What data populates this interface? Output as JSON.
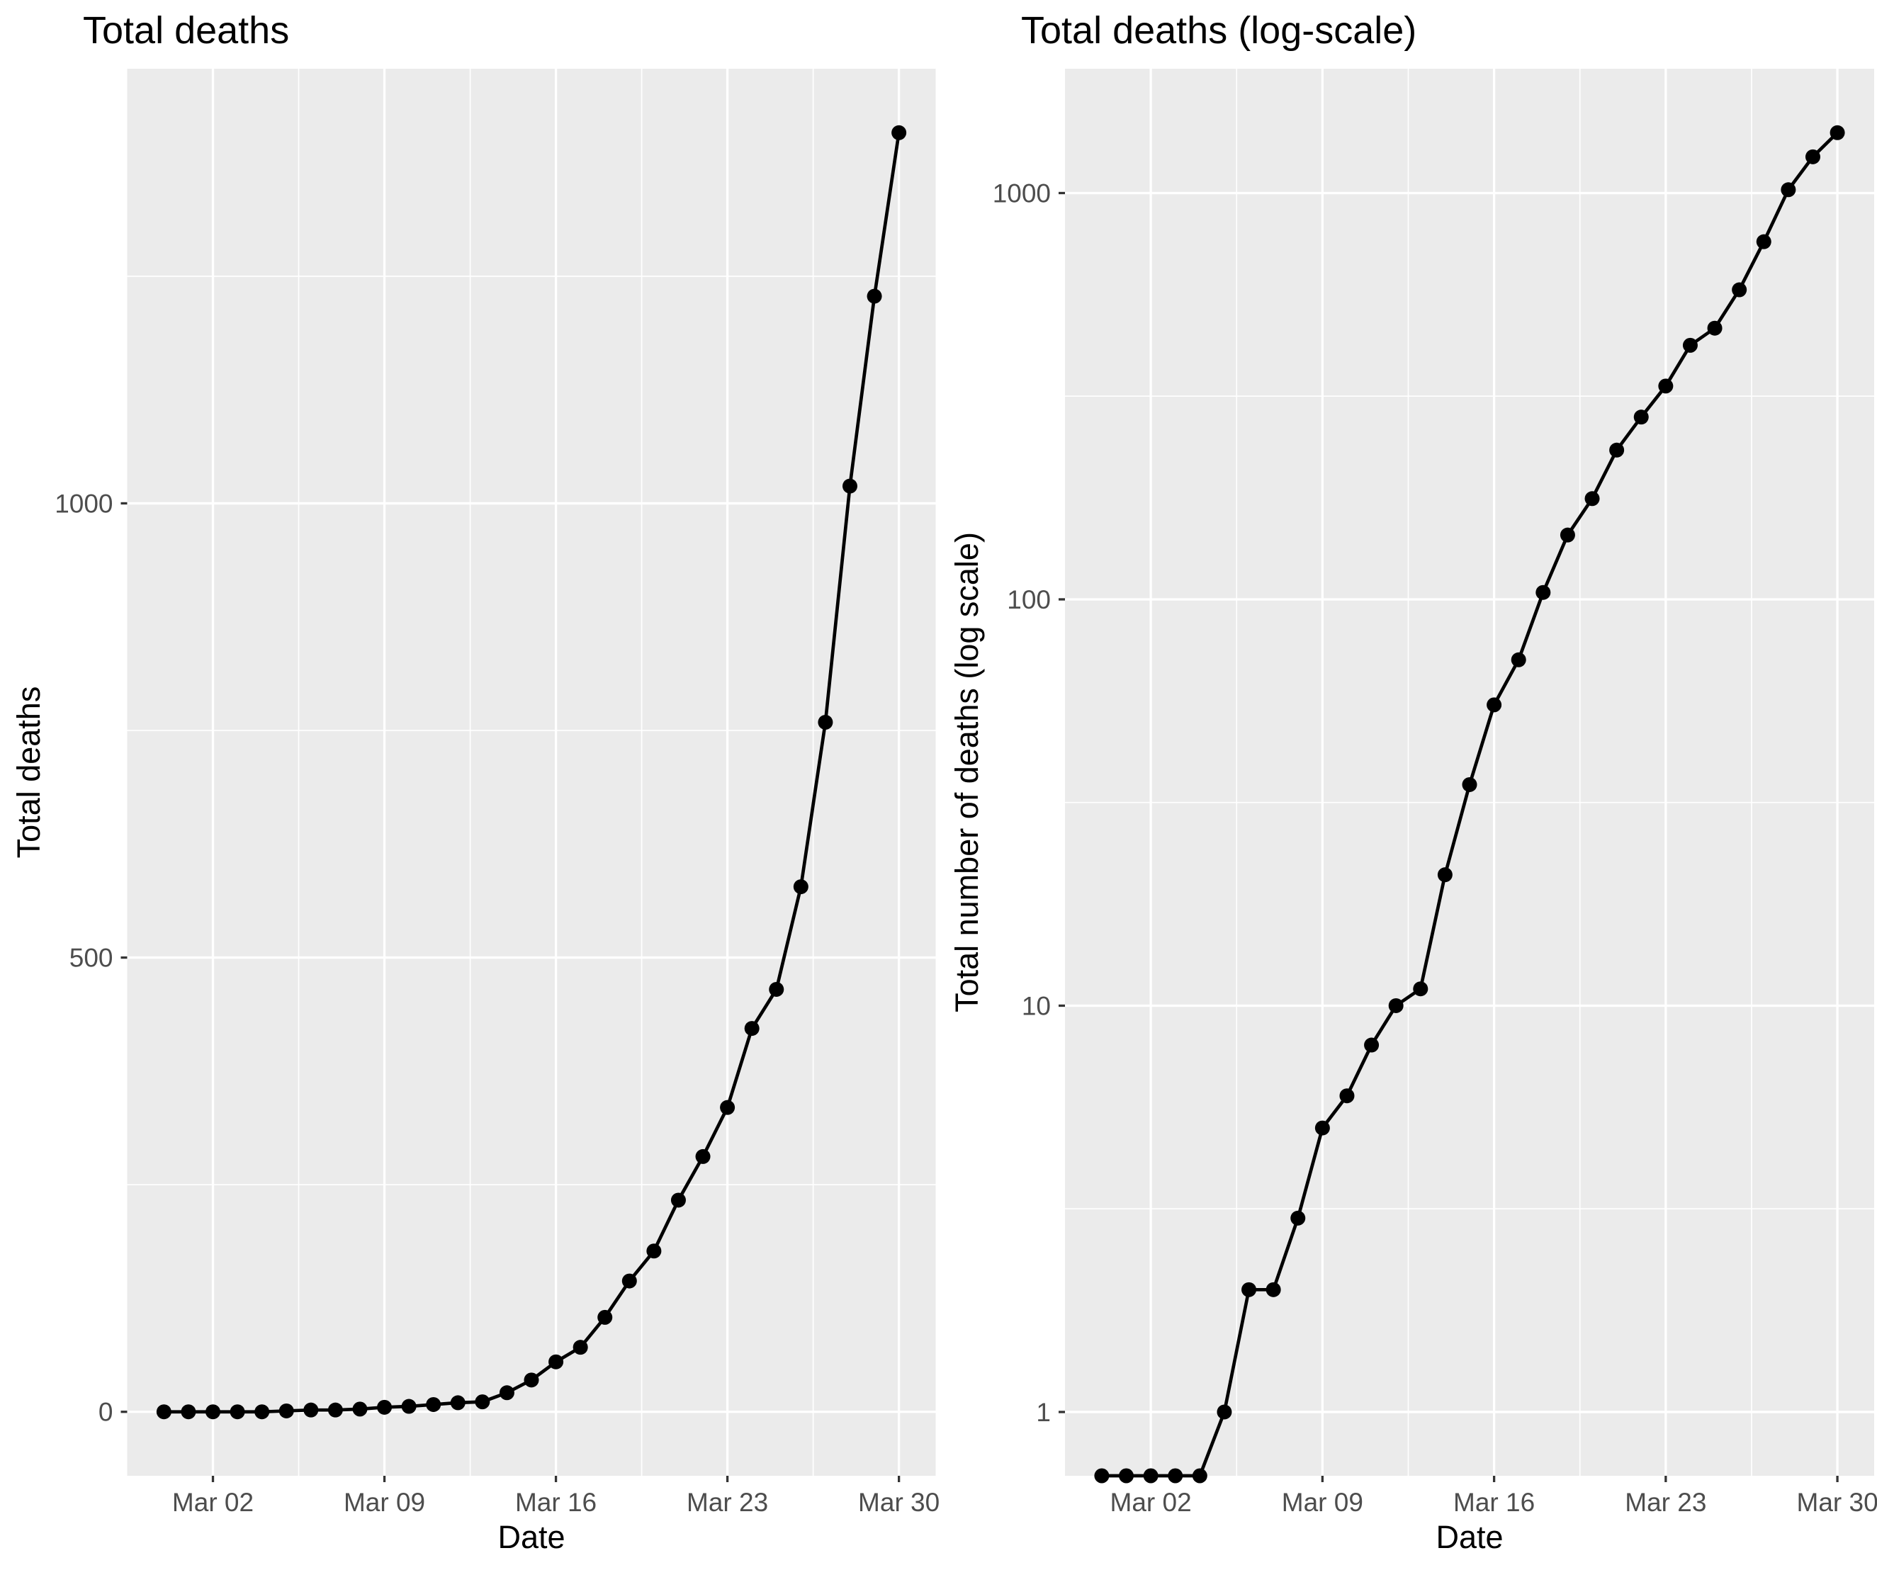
{
  "style": {
    "background": "#FFFFFF",
    "panel_background": "#EBEBEB",
    "grid_color": "#FFFFFF",
    "line_color": "#000000",
    "point_color": "#000000",
    "axis_tick_color": "#333333",
    "tick_label_color": "#4D4D4D",
    "text_color": "#000000"
  },
  "chart_data": [
    {
      "type": "line",
      "scale": "linear",
      "title": "Total deaths",
      "xlabel": "Date",
      "ylabel": "Total deaths",
      "x": [
        "Feb 29",
        "Mar 01",
        "Mar 02",
        "Mar 03",
        "Mar 04",
        "Mar 05",
        "Mar 06",
        "Mar 07",
        "Mar 08",
        "Mar 09",
        "Mar 10",
        "Mar 11",
        "Mar 12",
        "Mar 13",
        "Mar 14",
        "Mar 15",
        "Mar 16",
        "Mar 17",
        "Mar 18",
        "Mar 19",
        "Mar 20",
        "Mar 21",
        "Mar 22",
        "Mar 23",
        "Mar 24",
        "Mar 25",
        "Mar 26",
        "Mar 27",
        "Mar 28",
        "Mar 29",
        "Mar 30"
      ],
      "values": [
        0,
        0,
        0,
        0,
        0,
        1,
        2,
        2,
        3,
        5,
        6,
        8,
        10,
        11,
        21,
        35,
        55,
        71,
        104,
        144,
        177,
        233,
        281,
        335,
        422,
        465,
        578,
        759,
        1019,
        1228,
        1408
      ],
      "x_tick_labels": [
        "Mar 02",
        "Mar 09",
        "Mar 16",
        "Mar 23",
        "Mar 30"
      ],
      "y_tick_labels": [
        "0",
        "500",
        "1000"
      ],
      "y_ticks": [
        0,
        500,
        1000
      ],
      "y_minor_ticks": [
        250,
        750,
        1250
      ],
      "ylim": [
        -70.4,
        1478.4
      ],
      "grid": true,
      "legend": "none"
    },
    {
      "type": "line",
      "scale": "log10",
      "title": "Total deaths (log-scale)",
      "xlabel": "Date",
      "ylabel": "Total number of deaths (log scale)",
      "x": [
        "Feb 29",
        "Mar 01",
        "Mar 02",
        "Mar 03",
        "Mar 04",
        "Mar 05",
        "Mar 06",
        "Mar 07",
        "Mar 08",
        "Mar 09",
        "Mar 10",
        "Mar 11",
        "Mar 12",
        "Mar 13",
        "Mar 14",
        "Mar 15",
        "Mar 16",
        "Mar 17",
        "Mar 18",
        "Mar 19",
        "Mar 20",
        "Mar 21",
        "Mar 22",
        "Mar 23",
        "Mar 24",
        "Mar 25",
        "Mar 26",
        "Mar 27",
        "Mar 28",
        "Mar 29",
        "Mar 30"
      ],
      "values": [
        0,
        0,
        0,
        0,
        0,
        1,
        2,
        2,
        3,
        5,
        6,
        8,
        10,
        11,
        21,
        35,
        55,
        71,
        104,
        144,
        177,
        233,
        281,
        335,
        422,
        465,
        578,
        759,
        1019,
        1228,
        1408
      ],
      "x_tick_labels": [
        "Mar 02",
        "Mar 09",
        "Mar 16",
        "Mar 23",
        "Mar 30"
      ],
      "y_tick_labels": [
        "1",
        "10",
        "100",
        "1000"
      ],
      "y_ticks": [
        1,
        10,
        100,
        1000
      ],
      "y_minor_ticks": [
        3.1623,
        31.623,
        316.23
      ],
      "ylim_log10": [
        -0.157,
        3.306
      ],
      "zero_handling": "zero values plotted at panel bottom edge",
      "grid": true,
      "legend": "none"
    }
  ]
}
